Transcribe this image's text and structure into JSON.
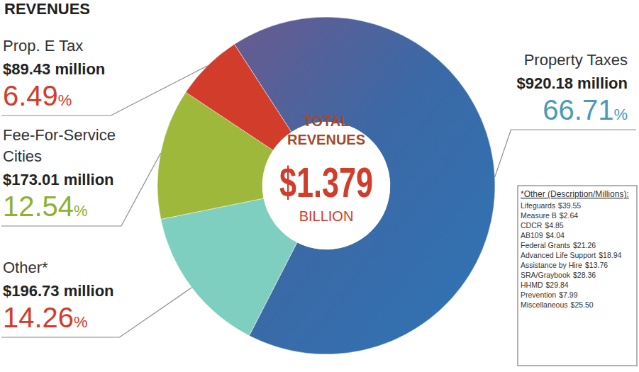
{
  "chart_data": {
    "type": "pie",
    "title": "REVENUES",
    "categories": [
      "Property Taxes",
      "Other*",
      "Fee-For-Service Cities",
      "Prop. E Tax"
    ],
    "values": [
      66.71,
      14.26,
      12.54,
      6.49
    ],
    "value_labels": [
      "66.71%",
      "14.26%",
      "12.54%",
      "6.49%"
    ],
    "amounts": [
      920.18,
      196.73,
      173.01,
      89.43
    ],
    "amount_labels": [
      "$920.18 million",
      "$196.73 million",
      "$173.01 million",
      "$89.43 million"
    ],
    "colors": [
      "#3b69a6",
      "#7ecfbf",
      "#9db83a",
      "#d23c2a"
    ],
    "data_labels": true,
    "center": {
      "title": "TOTAL REVENUES",
      "value": 1.379,
      "value_label": "$1.379",
      "unit": "BILLION"
    },
    "other_breakdown": {
      "title": "*Other (Description/Millions):",
      "items": [
        {
          "name": "Lifeguards",
          "value": 39.55,
          "label": "$39.55"
        },
        {
          "name": "Measure B",
          "value": 2.64,
          "label": "$2.64"
        },
        {
          "name": "CDCR",
          "value": 4.85,
          "label": "$4.85"
        },
        {
          "name": "AB109",
          "value": 4.04,
          "label": "$4.04"
        },
        {
          "name": "Federal Grants",
          "value": 21.26,
          "label": "$21.26"
        },
        {
          "name": "Advanced Life Support",
          "value": 18.94,
          "label": "$18.94"
        },
        {
          "name": "Assistance by Hire",
          "value": 13.76,
          "label": "$13.76"
        },
        {
          "name": "SRA/Graybook",
          "value": 28.36,
          "label": "$28.36"
        },
        {
          "name": "HHMD",
          "value": 29.84,
          "label": "$29.84"
        },
        {
          "name": "Prevention",
          "value": 7.99,
          "label": "$7.99"
        },
        {
          "name": "Miscellaneous",
          "value": 25.5,
          "label": "$25.50"
        }
      ]
    }
  }
}
